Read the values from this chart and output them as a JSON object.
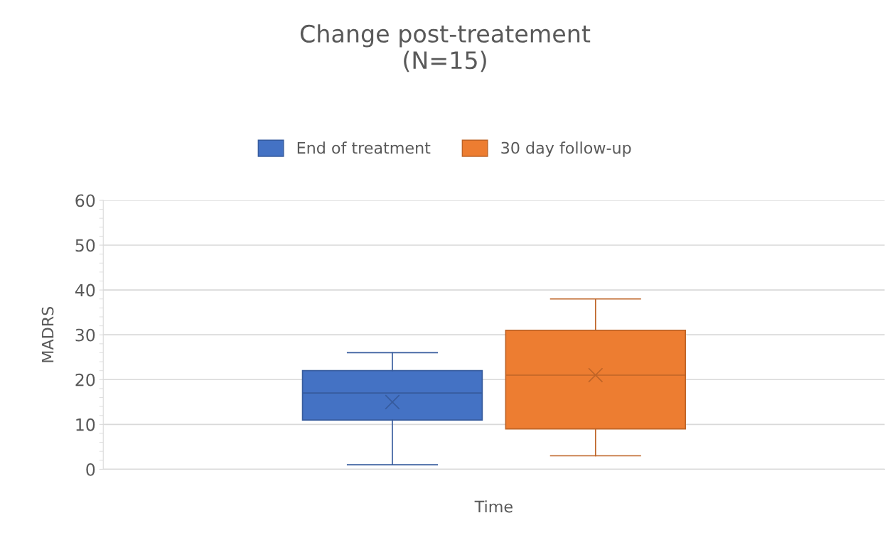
{
  "chart_data": {
    "type": "box",
    "title": "Change post-treatement\n(N=15)",
    "xlabel": "Time",
    "ylabel": "MADRS",
    "categories": [
      null
    ],
    "series": [
      {
        "name": "End of treatment",
        "color": "#4472c4",
        "boxes": [
          {
            "low": 1,
            "q1": 11,
            "median": 17,
            "q3": 22,
            "high": 26,
            "mean": 15
          }
        ]
      },
      {
        "name": "30 day follow-up",
        "color": "#ed7d31",
        "boxes": [
          {
            "low": 3,
            "q1": 9,
            "median": 21,
            "q3": 31,
            "high": 38,
            "mean": 21
          }
        ]
      }
    ],
    "ylim": [
      0,
      60
    ],
    "yticks": [
      0,
      10,
      20,
      30,
      40,
      50,
      60
    ],
    "grid": "y",
    "legend": "top",
    "marker": "cross"
  }
}
